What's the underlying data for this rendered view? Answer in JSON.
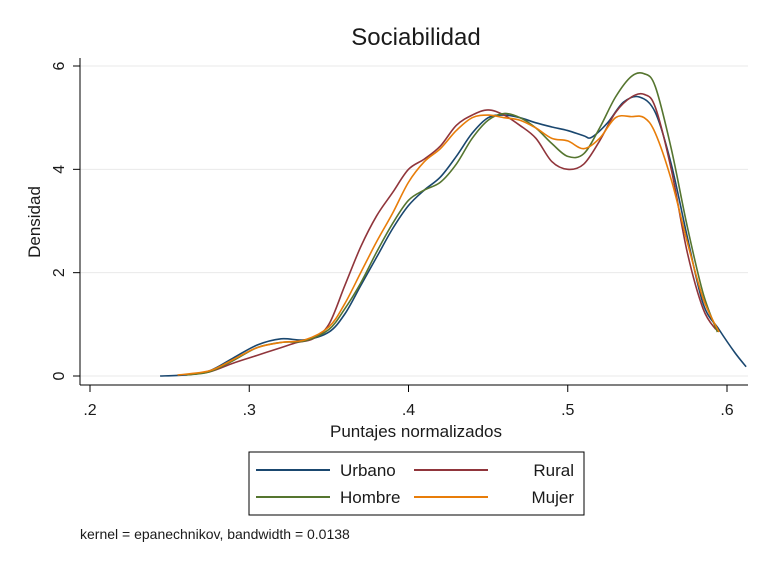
{
  "chart_data": {
    "type": "line",
    "title": "Sociabilidad",
    "xlabel": "Puntajes normalizados",
    "ylabel": "Densidad",
    "xlim": [
      0.2,
      0.6
    ],
    "ylim": [
      0,
      6
    ],
    "xticks": [
      ".2",
      ".3",
      ".4",
      ".5",
      ".6"
    ],
    "yticks": [
      "0",
      "2",
      "4",
      "6"
    ],
    "grid": true,
    "legend_position": "bottom",
    "note": "kernel = epanechnikov, bandwidth = 0.0138",
    "series": [
      {
        "name": "Urbano",
        "color": "#1a476f",
        "x": [
          0.244,
          0.26,
          0.275,
          0.29,
          0.305,
          0.32,
          0.335,
          0.35,
          0.36,
          0.37,
          0.38,
          0.39,
          0.4,
          0.41,
          0.42,
          0.43,
          0.44,
          0.45,
          0.46,
          0.47,
          0.48,
          0.49,
          0.5,
          0.51,
          0.515,
          0.525,
          0.535,
          0.545,
          0.555,
          0.565,
          0.575,
          0.585,
          0.595,
          0.605,
          0.612
        ],
        "y": [
          0.0,
          0.02,
          0.1,
          0.35,
          0.6,
          0.72,
          0.7,
          0.85,
          1.2,
          1.75,
          2.3,
          2.85,
          3.3,
          3.6,
          3.85,
          4.25,
          4.7,
          5.0,
          5.05,
          5.0,
          4.9,
          4.82,
          4.75,
          4.65,
          4.62,
          4.9,
          5.3,
          5.4,
          5.1,
          4.1,
          2.7,
          1.4,
          0.9,
          0.45,
          0.18
        ]
      },
      {
        "name": "Rural",
        "color": "#90353b",
        "x": [
          0.26,
          0.275,
          0.29,
          0.305,
          0.32,
          0.33,
          0.34,
          0.35,
          0.36,
          0.37,
          0.38,
          0.39,
          0.4,
          0.41,
          0.42,
          0.43,
          0.44,
          0.45,
          0.46,
          0.47,
          0.48,
          0.49,
          0.5,
          0.51,
          0.52,
          0.53,
          0.54,
          0.548,
          0.555,
          0.565,
          0.575,
          0.585,
          0.593
        ],
        "y": [
          0.02,
          0.08,
          0.25,
          0.4,
          0.55,
          0.65,
          0.72,
          1.0,
          1.75,
          2.5,
          3.1,
          3.55,
          4.0,
          4.2,
          4.45,
          4.85,
          5.05,
          5.15,
          5.05,
          4.85,
          4.6,
          4.15,
          4.0,
          4.1,
          4.55,
          5.1,
          5.4,
          5.45,
          5.2,
          4.0,
          2.4,
          1.3,
          0.9
        ]
      },
      {
        "name": "Hombre",
        "color": "#55752f",
        "x": [
          0.26,
          0.275,
          0.29,
          0.305,
          0.32,
          0.335,
          0.35,
          0.36,
          0.37,
          0.38,
          0.39,
          0.4,
          0.41,
          0.42,
          0.43,
          0.44,
          0.45,
          0.46,
          0.47,
          0.48,
          0.49,
          0.5,
          0.51,
          0.52,
          0.53,
          0.54,
          0.548,
          0.555,
          0.565,
          0.575,
          0.585,
          0.594
        ],
        "y": [
          0.02,
          0.08,
          0.3,
          0.55,
          0.65,
          0.68,
          0.9,
          1.3,
          1.8,
          2.4,
          2.95,
          3.4,
          3.6,
          3.75,
          4.1,
          4.6,
          4.95,
          5.08,
          5.0,
          4.8,
          4.5,
          4.25,
          4.3,
          4.8,
          5.4,
          5.8,
          5.85,
          5.6,
          4.4,
          2.9,
          1.6,
          0.85
        ]
      },
      {
        "name": "Mujer",
        "color": "#e87d09",
        "x": [
          0.255,
          0.275,
          0.29,
          0.305,
          0.32,
          0.335,
          0.35,
          0.36,
          0.37,
          0.38,
          0.39,
          0.4,
          0.41,
          0.42,
          0.43,
          0.44,
          0.45,
          0.46,
          0.47,
          0.48,
          0.49,
          0.5,
          0.51,
          0.52,
          0.53,
          0.54,
          0.548,
          0.555,
          0.565,
          0.575,
          0.585,
          0.595
        ],
        "y": [
          0.02,
          0.1,
          0.32,
          0.55,
          0.65,
          0.7,
          0.95,
          1.4,
          2.0,
          2.6,
          3.15,
          3.75,
          4.15,
          4.4,
          4.75,
          5.0,
          5.05,
          5.0,
          4.95,
          4.8,
          4.6,
          4.55,
          4.4,
          4.6,
          5.0,
          5.02,
          5.0,
          4.7,
          3.8,
          2.6,
          1.5,
          0.85
        ]
      }
    ]
  }
}
